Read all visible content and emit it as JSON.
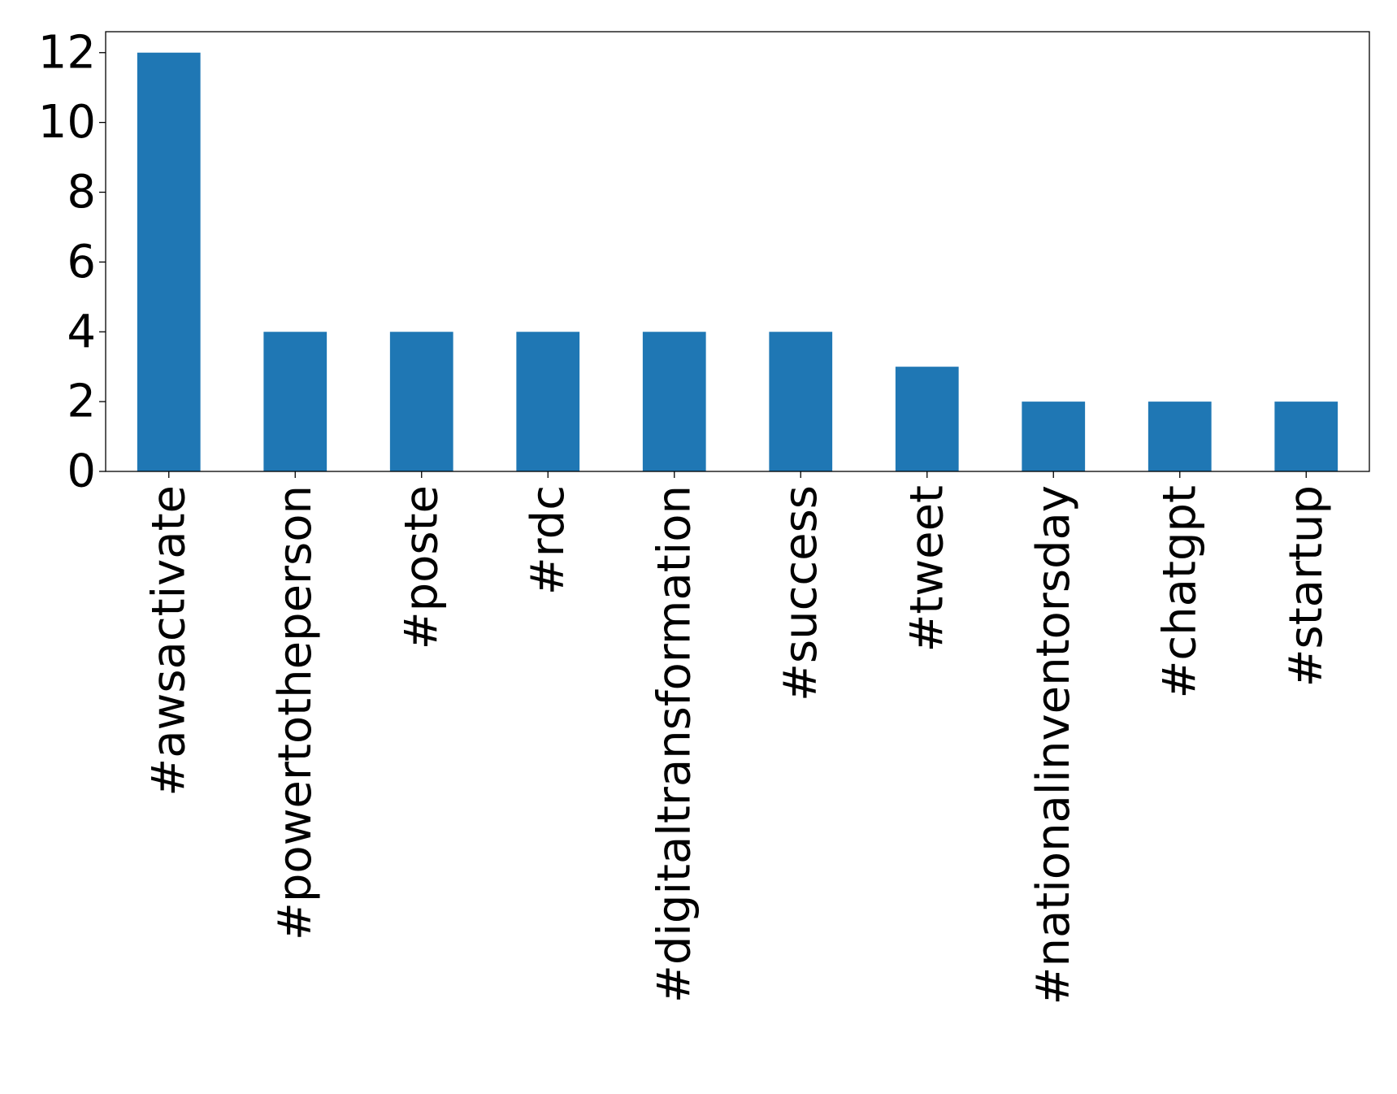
{
  "chart_data": {
    "type": "bar",
    "title": "",
    "xlabel": "",
    "ylabel": "",
    "categories": [
      "#awsactivate",
      "#powertotheperson",
      "#poste",
      "#rdc",
      "#digitaltransformation",
      "#success",
      "#tweet",
      "#nationalinventorsday",
      "#chatgpt",
      "#startup"
    ],
    "values": [
      12,
      4,
      4,
      4,
      4,
      4,
      3,
      2,
      2,
      2
    ],
    "ylim": [
      0,
      12.6
    ],
    "yticks": [
      0,
      2,
      4,
      6,
      8,
      10,
      12
    ],
    "grid": false,
    "legend": "none",
    "bar_color": "#1f77b4"
  }
}
